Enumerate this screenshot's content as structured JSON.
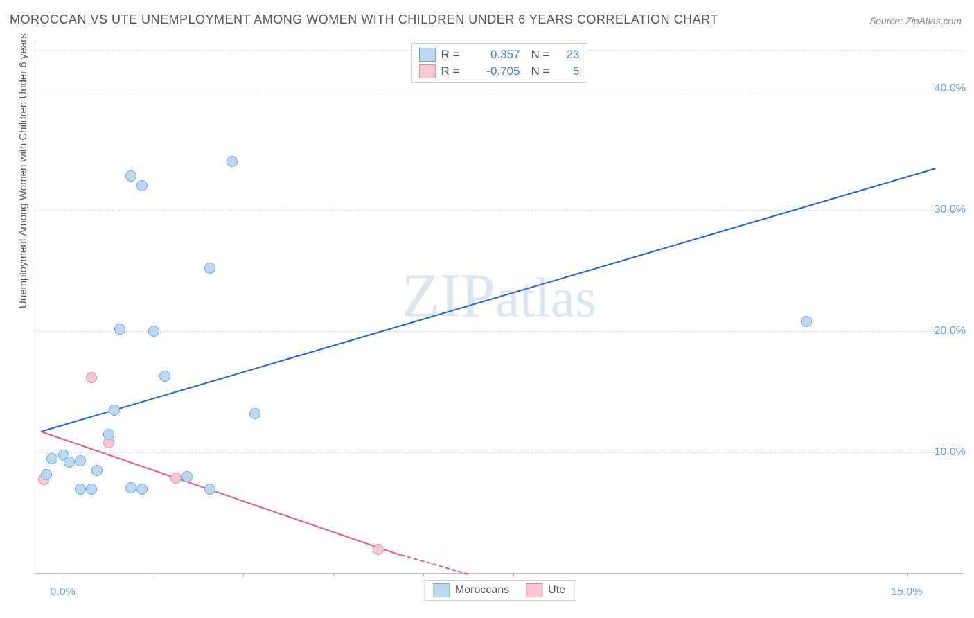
{
  "title": "MOROCCAN VS UTE UNEMPLOYMENT AMONG WOMEN WITH CHILDREN UNDER 6 YEARS CORRELATION CHART",
  "source": "Source: ZipAtlas.com",
  "ylabel": "Unemployment Among Women with Children Under 6 years",
  "watermark": "ZIPatlas",
  "chart": {
    "type": "scatter",
    "xlim": [
      -0.5,
      16.0
    ],
    "ylim": [
      0.0,
      44.0
    ],
    "x_tick_positions": [
      0.0,
      1.6,
      3.2,
      4.8,
      6.4,
      8.0,
      15.0
    ],
    "x_tick_labels": {
      "0.0": "0.0%",
      "15.0": "15.0%"
    },
    "y_grid": [
      10.0,
      20.0,
      30.0,
      40.0,
      43.2
    ],
    "y_tick_labels": {
      "10.0": "10.0%",
      "20.0": "20.0%",
      "30.0": "30.0%",
      "40.0": "40.0%"
    },
    "background": "#ffffff",
    "grid_color": "#dddddd",
    "axis_color": "#bbbbbb"
  },
  "series": {
    "moroccans": {
      "label": "Moroccans",
      "R": "0.357",
      "N": "23",
      "fill": "#bdd7ee",
      "stroke": "#6fa8dc",
      "line_color": "#2264c7",
      "points": [
        [
          -0.3,
          8.2
        ],
        [
          -0.2,
          9.5
        ],
        [
          0.0,
          9.8
        ],
        [
          0.1,
          9.2
        ],
        [
          0.3,
          9.3
        ],
        [
          0.3,
          7.0
        ],
        [
          0.6,
          8.5
        ],
        [
          0.5,
          7.0
        ],
        [
          0.8,
          11.5
        ],
        [
          1.2,
          7.1
        ],
        [
          1.4,
          7.0
        ],
        [
          1.0,
          20.2
        ],
        [
          1.6,
          20.0
        ],
        [
          0.9,
          13.5
        ],
        [
          1.8,
          16.3
        ],
        [
          2.2,
          8.0
        ],
        [
          2.6,
          7.0
        ],
        [
          1.2,
          32.8
        ],
        [
          1.4,
          32.0
        ],
        [
          2.6,
          25.2
        ],
        [
          3.0,
          34.0
        ],
        [
          3.4,
          13.2
        ],
        [
          13.2,
          20.8
        ]
      ],
      "trend": {
        "x1": -0.4,
        "y1": 11.8,
        "x2": 15.5,
        "y2": 33.5
      }
    },
    "ute": {
      "label": "Ute",
      "R": "-0.705",
      "N": "5",
      "fill": "#f8c8d2",
      "stroke": "#e88aa0",
      "line_color": "#e75a8d",
      "points": [
        [
          -0.35,
          7.8
        ],
        [
          0.5,
          16.2
        ],
        [
          0.8,
          10.8
        ],
        [
          2.0,
          7.9
        ],
        [
          5.6,
          2.0
        ]
      ],
      "trend_solid": {
        "x1": -0.4,
        "y1": 11.8,
        "x2": 6.0,
        "y2": 1.6
      },
      "trend_dash": {
        "x1": 6.0,
        "y1": 1.6,
        "x2": 7.2,
        "y2": 0.0
      }
    }
  }
}
